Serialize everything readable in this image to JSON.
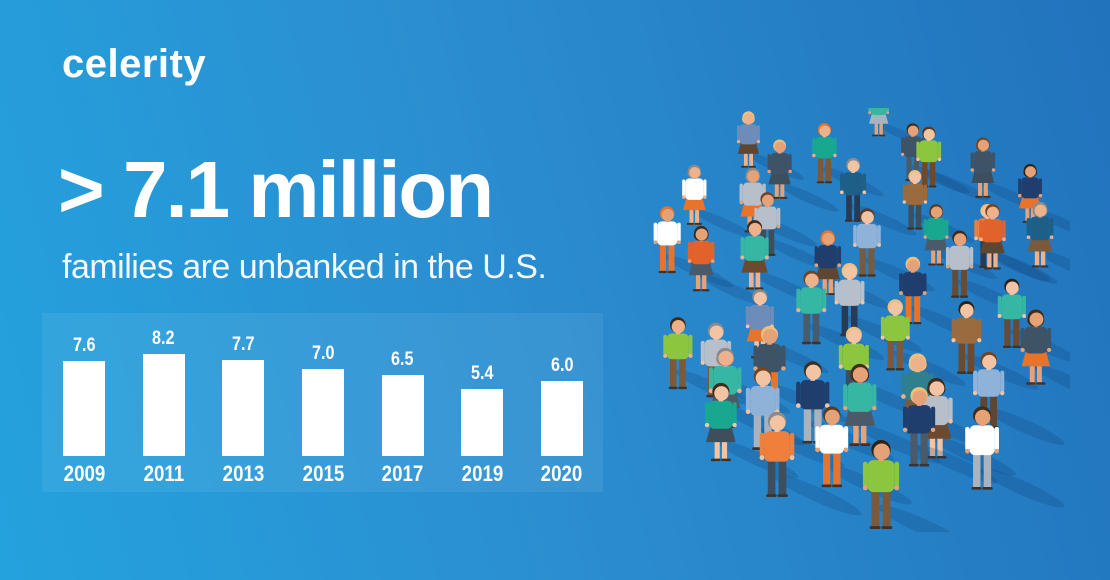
{
  "brand": {
    "logo_text": "celerity"
  },
  "headline": {
    "title": "> 7.1 million",
    "subtitle": "families are unbanked in the U.S."
  },
  "chart_data": {
    "type": "bar",
    "categories": [
      "2009",
      "2011",
      "2013",
      "2015",
      "2017",
      "2019",
      "2020"
    ],
    "values": [
      7.6,
      8.2,
      7.7,
      7.0,
      6.5,
      5.4,
      6.0
    ],
    "value_labels": [
      "7.6",
      "8.2",
      "7.7",
      "7.0",
      "6.5",
      "5.4",
      "6.0"
    ],
    "title": "",
    "xlabel": "",
    "ylabel": "",
    "ylim": [
      0,
      8.2
    ],
    "grid": false,
    "legend": false,
    "bar_color": "#ffffff",
    "label_color": "#ffffff",
    "panel_color": "rgba(255,255,255,0.07)"
  },
  "illustration": {
    "description": "flat-design crowd of people standing in a circular cluster",
    "palette": {
      "tops": [
        "#1f3e6d",
        "#18a88f",
        "#8cc63f",
        "#ef7f3b",
        "#8fb2d8",
        "#b6bfca",
        "#3e5366",
        "#9a6b3f",
        "#ffffff",
        "#35b7a4",
        "#e2622c",
        "#6d8cba",
        "#2f7f8f",
        "#1d5f86"
      ],
      "bottoms": [
        "#5d4733",
        "#3d4f5c",
        "#7a5a3a",
        "#293a54",
        "#a9b2bd",
        "#e8732a",
        "#6b4a2f",
        "#4a5a68"
      ],
      "skins": [
        "#f3c4a3",
        "#edb28b",
        "#e6a277"
      ],
      "hairs": [
        "#5b3a22",
        "#2f2113",
        "#e8732a",
        "#f0c079",
        "#8b8b8b",
        "#3f2c1a",
        "#74431f"
      ],
      "shoe": "#3a332e",
      "shadow": "rgba(15,61,112,0.22)"
    }
  },
  "colors": {
    "background_gradient": [
      "#24a2de",
      "#2b8ed0",
      "#2173bc"
    ],
    "text": "#ffffff"
  }
}
